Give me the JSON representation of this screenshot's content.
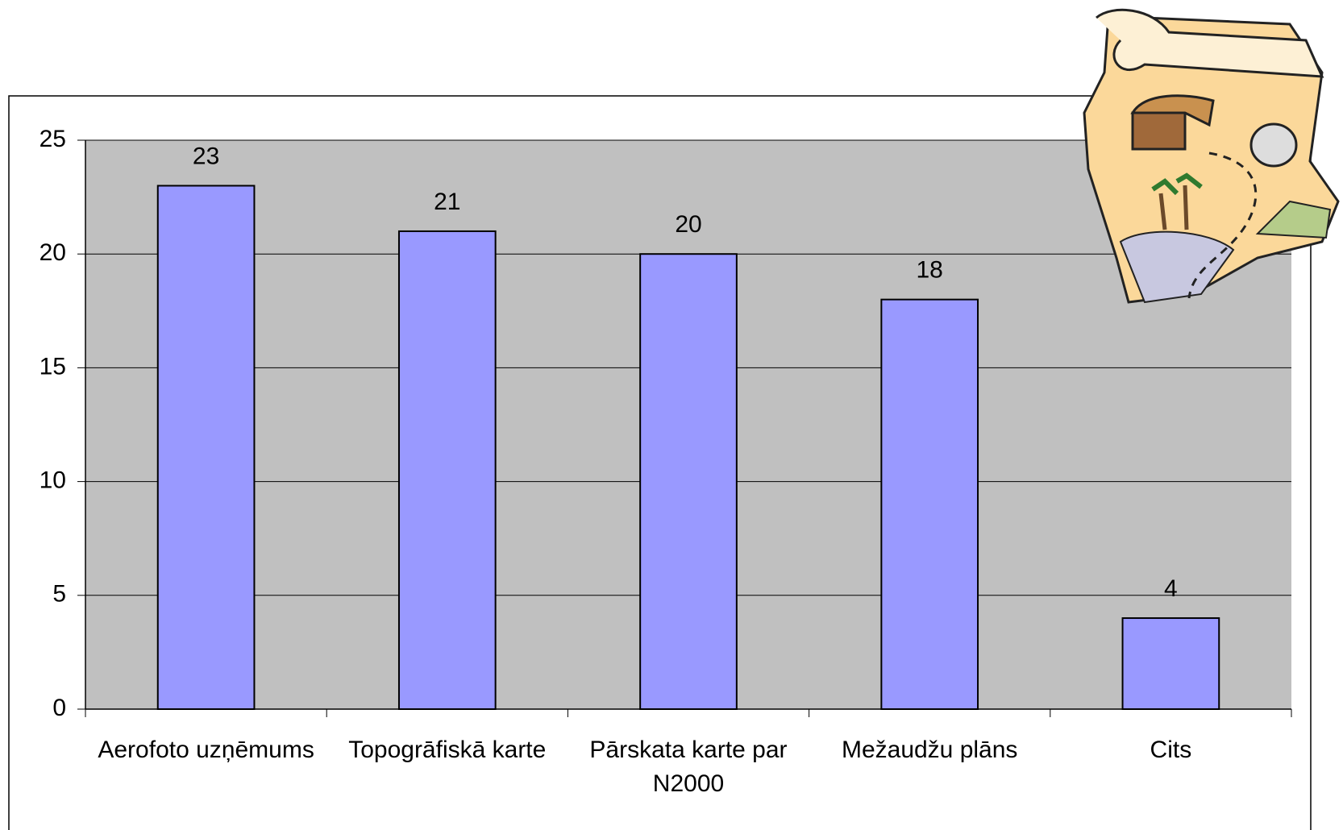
{
  "chart_data": {
    "type": "bar",
    "categories": [
      "Aerofoto uzņēmums",
      "Topogrāfiskā karte",
      "Pārskata karte par N2000",
      "Mežaudžu plāns",
      "Cits"
    ],
    "values": [
      23,
      21,
      20,
      18,
      4
    ],
    "color": "#9999ff",
    "ylim": [
      0,
      25
    ],
    "yticks": [
      0,
      5,
      10,
      15,
      20,
      25
    ],
    "grid": true
  }
}
